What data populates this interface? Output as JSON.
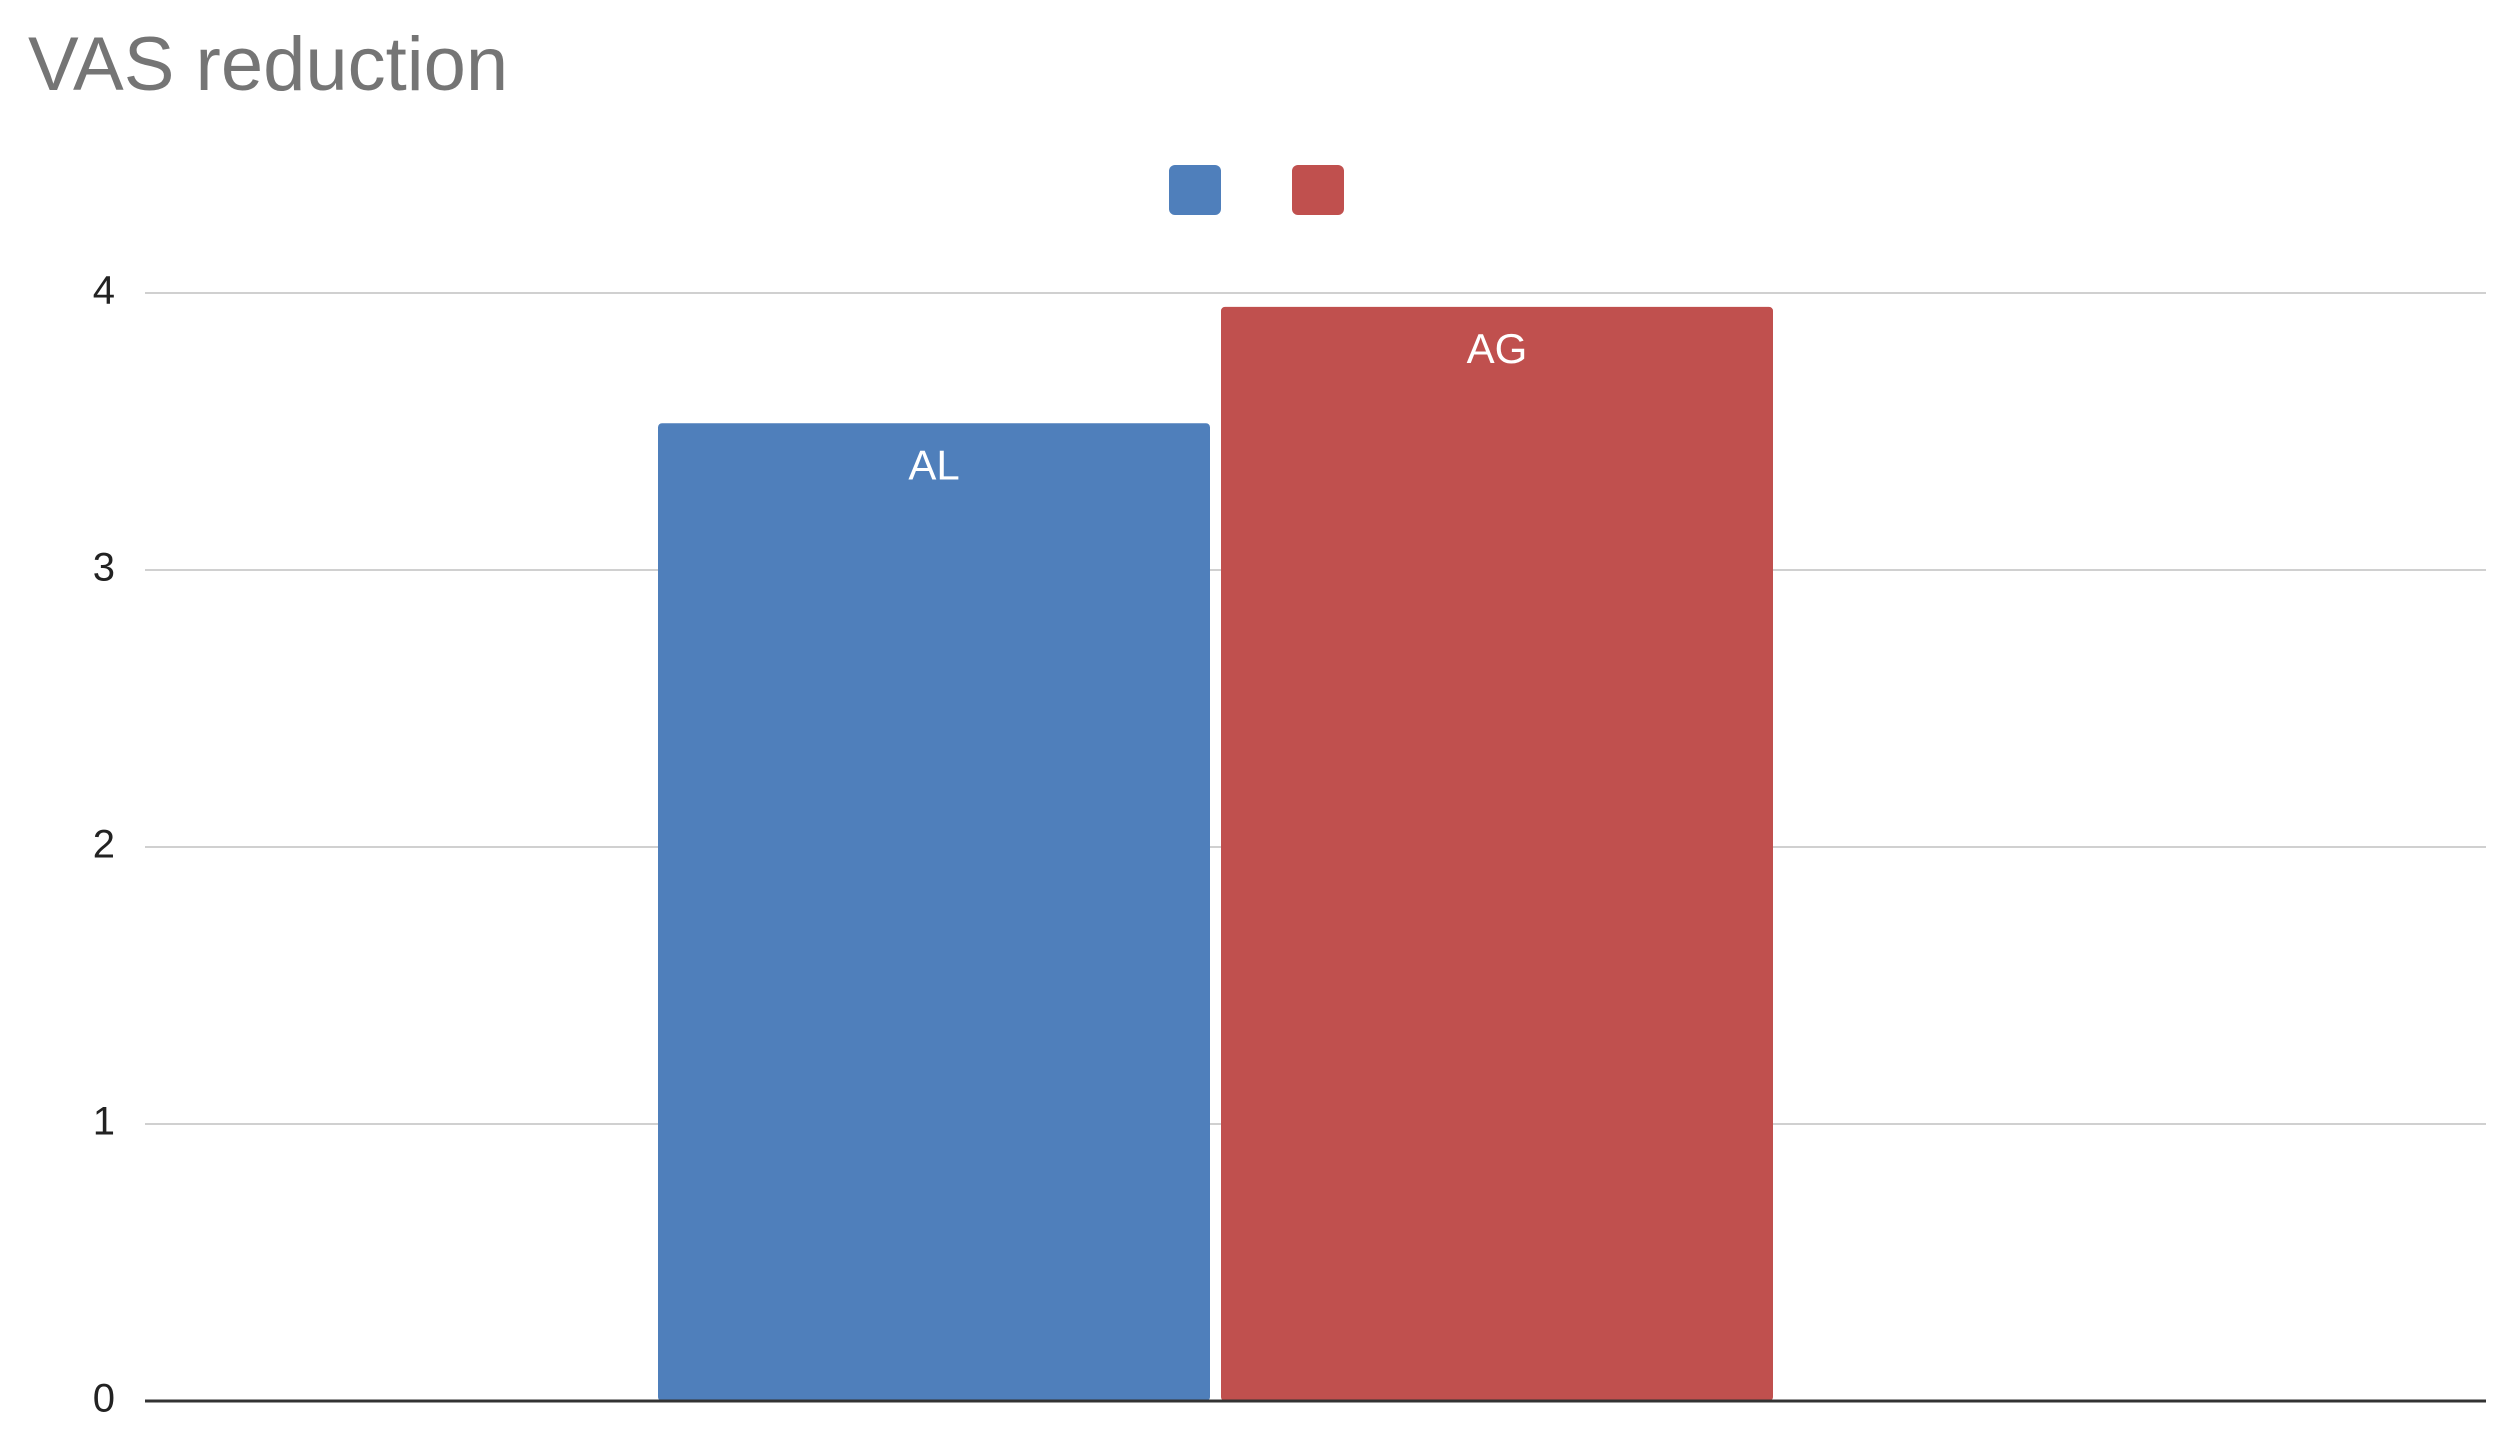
{
  "chart_data": {
    "type": "bar",
    "title": "VAS reduction",
    "categories": [
      null
    ],
    "series": [
      {
        "name": "AL",
        "color": "#4f7fbb",
        "values": [
          3.53
        ]
      },
      {
        "name": "AG",
        "color": "#c0504e",
        "values": [
          3.95
        ]
      }
    ],
    "ylim": [
      0,
      4
    ],
    "yticks": [
      0,
      1,
      2,
      3,
      4
    ],
    "grid": true,
    "legend": "top"
  }
}
